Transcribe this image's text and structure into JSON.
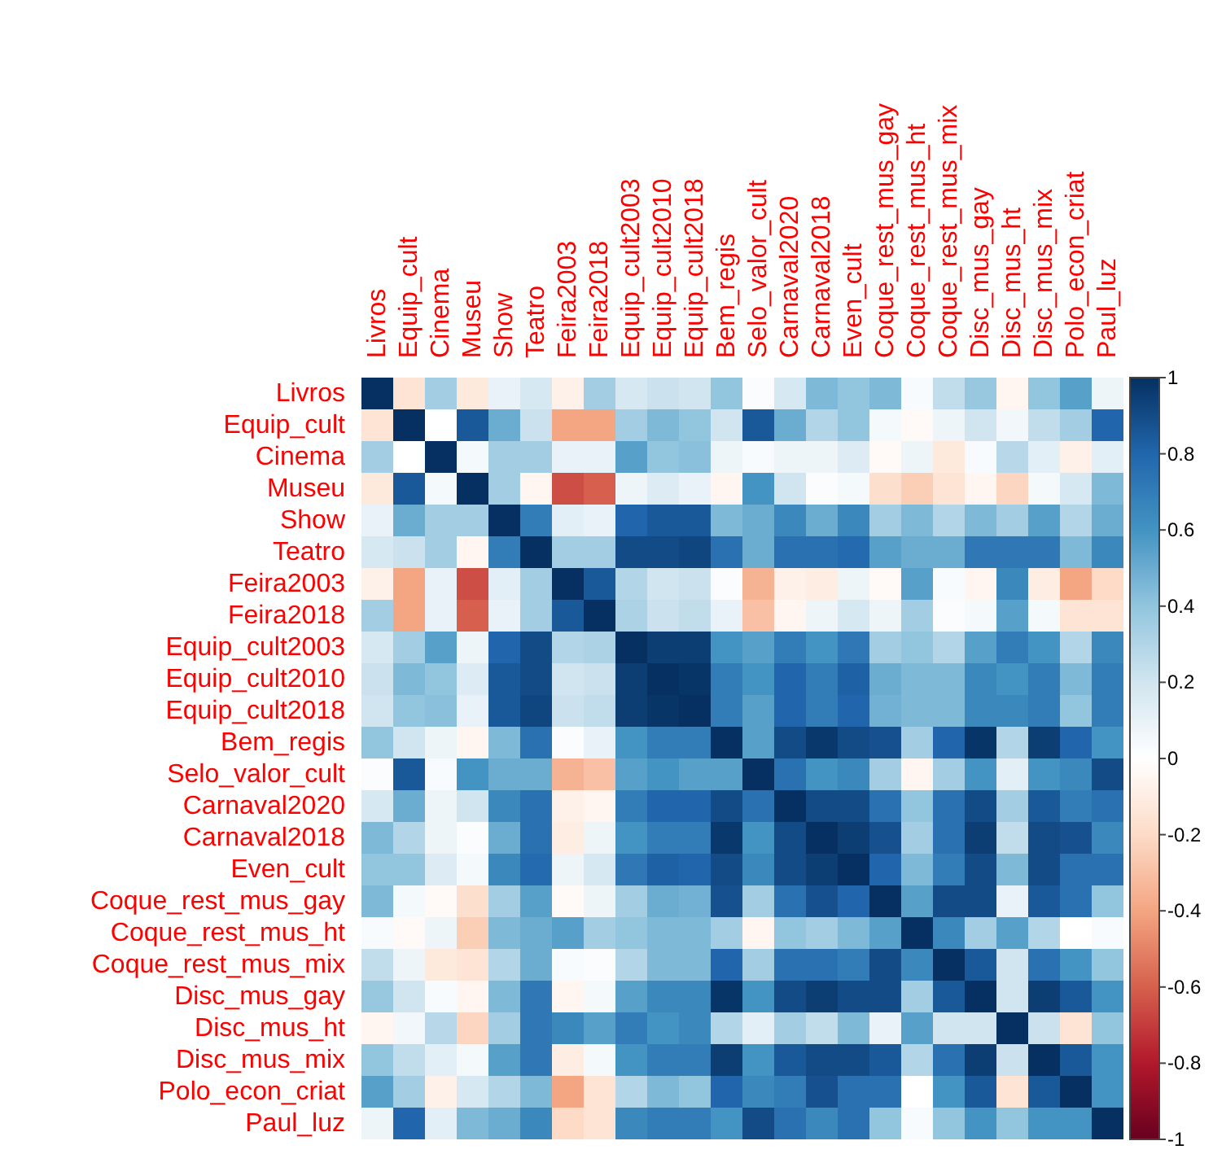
{
  "chart_data": {
    "type": "heatmap",
    "categories": [
      "Livros",
      "Equip_cult",
      "Cinema",
      "Museu",
      "Show",
      "Teatro",
      "Feira2003",
      "Feira2018",
      "Equip_cult2003",
      "Equip_cult2010",
      "Equip_cult2018",
      "Bem_regis",
      "Selo_valor_cult",
      "Carnaval2020",
      "Carnaval2018",
      "Even_cult",
      "Coque_rest_mus_gay",
      "Coque_rest_mus_ht",
      "Coque_rest_mus_mix",
      "Disc_mus_gay",
      "Disc_mus_ht",
      "Disc_mus_mix",
      "Polo_econ_criat",
      "Paul_luz"
    ],
    "y_categories": [
      "Livros",
      "Equip_cult",
      "Cinema",
      "Museu",
      "Show",
      "Teatro",
      "Feira2003",
      "Feira2018",
      "Equip_cult2003",
      "Equip_cult2010",
      "Equip_cult2018",
      "Bem_regis",
      "Selo_valor_cult",
      "Carnaval2020",
      "Carnaval2018",
      "Even_cult",
      "Coque_rest_mus_gay",
      "Coque_rest_mus_ht",
      "Coque_rest_mus_mix",
      "Disc_mus_gay",
      "Disc_mus_ht",
      "Disc_mus_mix",
      "Polo_econ_criat",
      "Paul_luz"
    ],
    "cells": [
      [
        1,
        -0.15,
        0.35,
        -0.12,
        0.1,
        0.18,
        -0.08,
        0.35,
        0.18,
        0.22,
        0.2,
        0.4,
        0.02,
        0.18,
        0.45,
        0.4,
        0.45,
        0.03,
        0.25,
        0.38,
        -0.05,
        0.4,
        0.55,
        0.08
      ],
      [
        -0.15,
        1,
        0,
        0.85,
        0.5,
        0.22,
        -0.4,
        -0.4,
        0.35,
        0.45,
        0.4,
        0.2,
        0.85,
        0.5,
        0.3,
        0.4,
        0.05,
        -0.03,
        0.08,
        0.2,
        0.06,
        0.25,
        0.35,
        0.8
      ],
      [
        0.35,
        0,
        1,
        0.05,
        0.35,
        0.35,
        0.1,
        0.1,
        0.55,
        0.4,
        0.42,
        0.08,
        0.03,
        0.08,
        0.08,
        0.15,
        -0.03,
        0.08,
        -0.12,
        0.03,
        0.28,
        0.12,
        -0.08,
        0.12
      ],
      [
        -0.12,
        0.85,
        0.05,
        1,
        0.35,
        -0.05,
        -0.65,
        -0.6,
        0.08,
        0.15,
        0.1,
        -0.05,
        0.6,
        0.2,
        0.02,
        0.05,
        -0.18,
        -0.25,
        -0.15,
        -0.05,
        -0.22,
        0.05,
        0.18,
        0.45
      ],
      [
        0.1,
        0.5,
        0.35,
        0.35,
        1,
        0.7,
        0.12,
        0.1,
        0.8,
        0.85,
        0.85,
        0.45,
        0.5,
        0.65,
        0.5,
        0.65,
        0.35,
        0.45,
        0.3,
        0.45,
        0.35,
        0.55,
        0.3,
        0.5
      ],
      [
        0.18,
        0.22,
        0.35,
        -0.05,
        0.7,
        1,
        0.35,
        0.35,
        0.9,
        0.9,
        0.92,
        0.75,
        0.5,
        0.75,
        0.75,
        0.78,
        0.55,
        0.5,
        0.5,
        0.72,
        0.72,
        0.72,
        0.45,
        0.65
      ],
      [
        -0.08,
        -0.4,
        0.1,
        -0.65,
        0.12,
        0.35,
        1,
        0.85,
        0.3,
        0.2,
        0.22,
        0.02,
        -0.35,
        -0.08,
        -0.1,
        0.08,
        -0.03,
        0.55,
        0.03,
        -0.05,
        0.65,
        -0.1,
        -0.4,
        -0.2
      ],
      [
        0.35,
        -0.4,
        0.1,
        -0.6,
        0.1,
        0.35,
        0.85,
        1,
        0.32,
        0.22,
        0.25,
        0.1,
        -0.3,
        -0.05,
        0.08,
        0.18,
        0.08,
        0.35,
        0.02,
        0.05,
        0.55,
        0.05,
        -0.15,
        -0.15
      ],
      [
        0.18,
        0.35,
        0.55,
        0.08,
        0.8,
        0.9,
        0.3,
        0.32,
        1,
        0.95,
        0.95,
        0.6,
        0.55,
        0.7,
        0.6,
        0.72,
        0.35,
        0.4,
        0.3,
        0.55,
        0.7,
        0.6,
        0.3,
        0.65
      ],
      [
        0.22,
        0.45,
        0.4,
        0.15,
        0.85,
        0.9,
        0.2,
        0.22,
        0.95,
        1,
        0.98,
        0.7,
        0.6,
        0.8,
        0.7,
        0.82,
        0.5,
        0.45,
        0.45,
        0.65,
        0.6,
        0.7,
        0.45,
        0.7
      ],
      [
        0.2,
        0.4,
        0.42,
        0.1,
        0.85,
        0.92,
        0.22,
        0.25,
        0.95,
        0.98,
        1,
        0.7,
        0.55,
        0.8,
        0.7,
        0.8,
        0.48,
        0.45,
        0.45,
        0.65,
        0.65,
        0.7,
        0.4,
        0.7
      ],
      [
        0.4,
        0.2,
        0.08,
        -0.05,
        0.45,
        0.75,
        0.02,
        0.1,
        0.6,
        0.7,
        0.7,
        1,
        0.55,
        0.9,
        0.97,
        0.9,
        0.88,
        0.35,
        0.8,
        0.98,
        0.3,
        0.95,
        0.8,
        0.6
      ],
      [
        0.02,
        0.85,
        0.03,
        0.6,
        0.5,
        0.5,
        -0.35,
        -0.3,
        0.55,
        0.6,
        0.55,
        0.55,
        1,
        0.75,
        0.6,
        0.65,
        0.35,
        -0.05,
        0.35,
        0.6,
        0.12,
        0.6,
        0.65,
        0.9
      ],
      [
        0.18,
        0.5,
        0.08,
        0.2,
        0.65,
        0.75,
        -0.08,
        -0.05,
        0.7,
        0.8,
        0.8,
        0.9,
        0.75,
        1,
        0.9,
        0.9,
        0.75,
        0.4,
        0.75,
        0.9,
        0.35,
        0.85,
        0.7,
        0.75
      ],
      [
        0.45,
        0.3,
        0.08,
        0.02,
        0.5,
        0.75,
        -0.1,
        0.08,
        0.6,
        0.7,
        0.7,
        0.97,
        0.6,
        0.9,
        1,
        0.95,
        0.88,
        0.35,
        0.75,
        0.95,
        0.25,
        0.9,
        0.88,
        0.65
      ],
      [
        0.4,
        0.4,
        0.15,
        0.05,
        0.65,
        0.78,
        0.08,
        0.18,
        0.72,
        0.82,
        0.8,
        0.9,
        0.65,
        0.9,
        0.95,
        1,
        0.8,
        0.45,
        0.7,
        0.9,
        0.45,
        0.9,
        0.75,
        0.75
      ],
      [
        0.45,
        0.05,
        -0.03,
        -0.18,
        0.35,
        0.55,
        -0.03,
        0.08,
        0.35,
        0.5,
        0.48,
        0.88,
        0.35,
        0.75,
        0.88,
        0.8,
        1,
        0.55,
        0.9,
        0.9,
        0.1,
        0.85,
        0.75,
        0.4
      ],
      [
        0.03,
        -0.03,
        0.08,
        -0.25,
        0.45,
        0.5,
        0.55,
        0.35,
        0.4,
        0.45,
        0.45,
        0.35,
        -0.05,
        0.4,
        0.35,
        0.45,
        0.55,
        1,
        0.65,
        0.35,
        0.55,
        0.3,
        0,
        0.03
      ],
      [
        0.25,
        0.08,
        -0.12,
        -0.15,
        0.3,
        0.5,
        0.03,
        0.02,
        0.3,
        0.45,
        0.45,
        0.8,
        0.35,
        0.75,
        0.75,
        0.7,
        0.9,
        0.65,
        1,
        0.85,
        0.2,
        0.75,
        0.6,
        0.4
      ],
      [
        0.38,
        0.2,
        0.03,
        -0.05,
        0.45,
        0.72,
        -0.05,
        0.05,
        0.55,
        0.65,
        0.65,
        0.98,
        0.6,
        0.9,
        0.95,
        0.9,
        0.9,
        0.35,
        0.85,
        1,
        0.2,
        0.95,
        0.85,
        0.6
      ],
      [
        -0.05,
        0.06,
        0.28,
        -0.22,
        0.35,
        0.72,
        0.65,
        0.55,
        0.7,
        0.6,
        0.65,
        0.3,
        0.12,
        0.35,
        0.25,
        0.45,
        0.1,
        0.55,
        0.2,
        0.2,
        1,
        0.22,
        -0.15,
        0.4
      ],
      [
        0.4,
        0.25,
        0.12,
        0.05,
        0.55,
        0.72,
        -0.1,
        0.05,
        0.6,
        0.7,
        0.7,
        0.95,
        0.6,
        0.85,
        0.9,
        0.9,
        0.85,
        0.3,
        0.75,
        0.95,
        0.22,
        1,
        0.85,
        0.6
      ],
      [
        0.55,
        0.35,
        -0.08,
        0.18,
        0.3,
        0.45,
        -0.4,
        -0.15,
        0.3,
        0.45,
        0.4,
        0.8,
        0.65,
        0.7,
        0.88,
        0.75,
        0.75,
        0,
        0.6,
        0.85,
        -0.15,
        0.85,
        1,
        0.6
      ],
      [
        0.08,
        0.8,
        0.12,
        0.45,
        0.5,
        0.65,
        -0.2,
        -0.15,
        0.65,
        0.7,
        0.7,
        0.6,
        0.9,
        0.75,
        0.65,
        0.75,
        0.4,
        0.03,
        0.4,
        0.6,
        0.4,
        0.6,
        0.6,
        1
      ]
    ],
    "clim": [
      -1,
      1
    ],
    "cticks": [
      -1,
      -0.8,
      -0.6,
      -0.4,
      -0.2,
      0,
      0.2,
      0.4,
      0.6,
      0.8,
      1
    ]
  }
}
